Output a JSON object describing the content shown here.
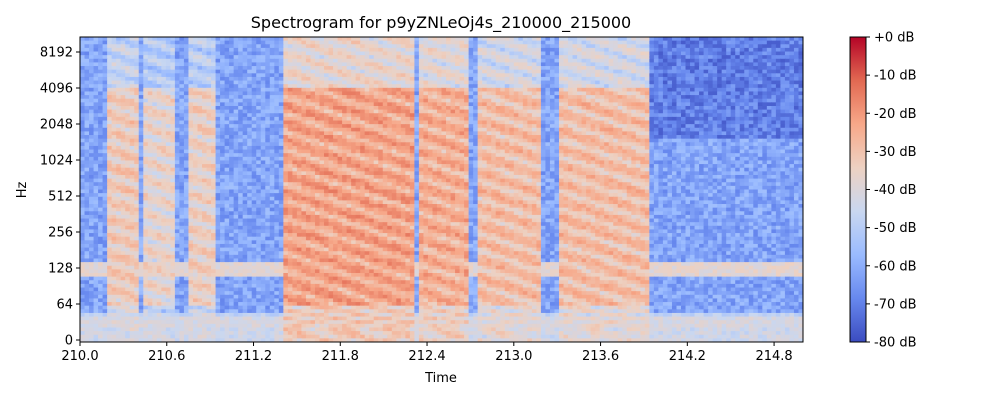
{
  "chart_data": {
    "type": "heatmap",
    "title": "Spectrogram for p9yZNLeOj4s_210000_215000",
    "xlabel": "Time",
    "ylabel": "Hz",
    "xlim": [
      210.0,
      215.0
    ],
    "x_ticks": [
      "210.0",
      "210.6",
      "211.2",
      "211.8",
      "212.4",
      "213.0",
      "213.6",
      "214.2",
      "214.8"
    ],
    "y_ticks": [
      "0",
      "64",
      "128",
      "256",
      "512",
      "1024",
      "2048",
      "4096",
      "8192"
    ],
    "y_scale": "symlog (base 2)",
    "colorbar": {
      "label_ticks": [
        "+0 dB",
        "-10 dB",
        "-20 dB",
        "-30 dB",
        "-40 dB",
        "-50 dB",
        "-60 dB",
        "-70 dB",
        "-80 dB"
      ],
      "range_db": [
        -80,
        0
      ],
      "colormap": "coolwarm",
      "colors": [
        "#3b4cc0",
        "#6788ee",
        "#9abbff",
        "#c9d7f0",
        "#edd1c2",
        "#f7a889",
        "#e26952",
        "#b40426"
      ]
    },
    "background_db": -62,
    "noise_floor_bands_hz": [
      {
        "hz_low": 25,
        "hz_high": 40,
        "db": -42
      },
      {
        "hz_low": 40,
        "hz_high": 48,
        "db": -48
      },
      {
        "hz_low": 110,
        "hz_high": 140,
        "db": -38
      }
    ],
    "speech_segments_s": [
      {
        "start": 210.2,
        "end": 210.4,
        "db": -28
      },
      {
        "start": 210.45,
        "end": 210.65,
        "db": -32
      },
      {
        "start": 210.75,
        "end": 210.95,
        "db": -30
      },
      {
        "start": 211.4,
        "end": 212.3,
        "db": -18
      },
      {
        "start": 212.35,
        "end": 212.7,
        "db": -20
      },
      {
        "start": 212.75,
        "end": 213.2,
        "db": -24
      },
      {
        "start": 213.3,
        "end": 213.95,
        "db": -24
      }
    ]
  }
}
